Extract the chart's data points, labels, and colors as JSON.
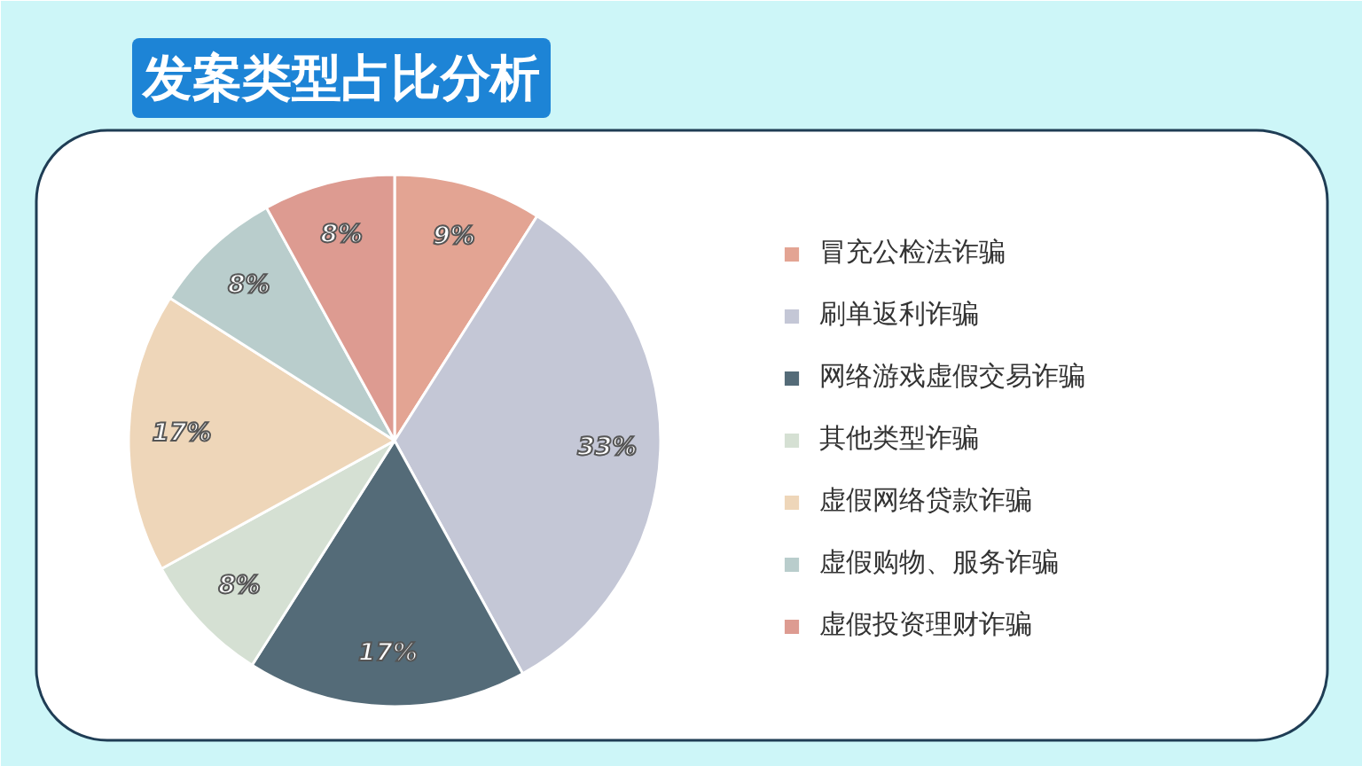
{
  "chart_data": {
    "type": "pie",
    "title": "发案类型占比分析",
    "categories": [
      "冒充公检法诈骗",
      "刷单返利诈骗",
      "网络游戏虚假交易诈骗",
      "其他类型诈骗",
      "虚假网络贷款诈骗",
      "虚假购物、服务诈骗",
      "虚假投资理财诈骗"
    ],
    "values": [
      9,
      33,
      17,
      8,
      17,
      8,
      8
    ],
    "value_labels": [
      "9%",
      "33%",
      "17%",
      "8%",
      "17%",
      "8%",
      "8%"
    ],
    "colors": [
      "#e3a493",
      "#c4c7d6",
      "#546b78",
      "#d5e0d3",
      "#eed6b9",
      "#b9cdcc",
      "#dd9b91"
    ],
    "legend": "right"
  }
}
